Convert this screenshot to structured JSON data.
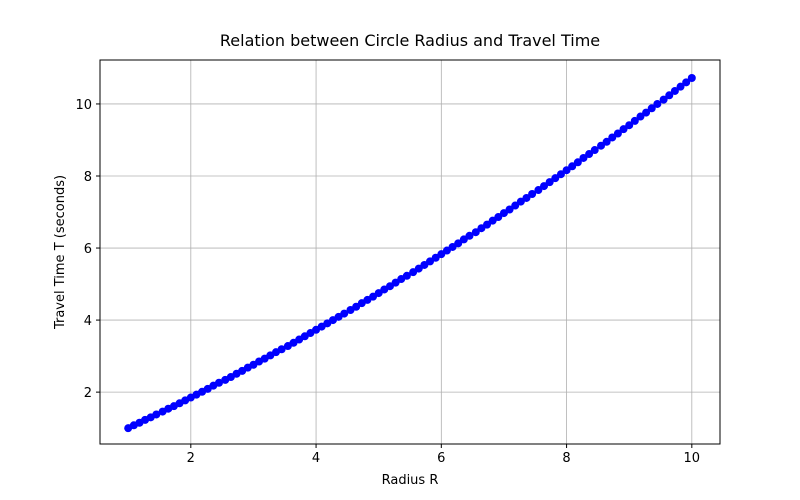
{
  "chart_data": {
    "type": "line",
    "title": "Relation between Circle Radius and Travel Time",
    "x_label": "Radius R",
    "y_label": "Travel Time T (seconds)",
    "x": [
      1.0,
      1.09,
      1.18,
      1.27,
      1.36,
      1.45,
      1.55,
      1.64,
      1.73,
      1.82,
      1.91,
      2.0,
      2.09,
      2.18,
      2.27,
      2.36,
      2.45,
      2.55,
      2.64,
      2.73,
      2.82,
      2.91,
      3.0,
      3.09,
      3.18,
      3.27,
      3.36,
      3.45,
      3.55,
      3.64,
      3.73,
      3.82,
      3.91,
      4.0,
      4.09,
      4.18,
      4.27,
      4.36,
      4.45,
      4.55,
      4.64,
      4.73,
      4.82,
      4.91,
      5.0,
      5.09,
      5.18,
      5.27,
      5.36,
      5.45,
      5.55,
      5.64,
      5.73,
      5.82,
      5.91,
      6.0,
      6.09,
      6.18,
      6.27,
      6.36,
      6.45,
      6.55,
      6.64,
      6.73,
      6.82,
      6.91,
      7.0,
      7.09,
      7.18,
      7.27,
      7.36,
      7.45,
      7.55,
      7.64,
      7.73,
      7.82,
      7.91,
      8.0,
      8.09,
      8.18,
      8.27,
      8.36,
      8.45,
      8.55,
      8.64,
      8.73,
      8.82,
      8.91,
      9.0,
      9.09,
      9.18,
      9.27,
      9.36,
      9.45,
      9.55,
      9.64,
      9.73,
      9.82,
      9.91,
      10.0
    ],
    "series": [
      {
        "color": "#0000ff",
        "values": [
          1.0,
          1.08,
          1.15,
          1.23,
          1.3,
          1.38,
          1.46,
          1.54,
          1.61,
          1.69,
          1.77,
          1.85,
          1.93,
          2.01,
          2.09,
          2.18,
          2.26,
          2.34,
          2.42,
          2.51,
          2.59,
          2.68,
          2.76,
          2.85,
          2.93,
          3.02,
          3.11,
          3.19,
          3.28,
          3.37,
          3.46,
          3.55,
          3.64,
          3.73,
          3.82,
          3.91,
          4.0,
          4.09,
          4.18,
          4.28,
          4.37,
          4.47,
          4.56,
          4.65,
          4.75,
          4.85,
          4.94,
          5.04,
          5.14,
          5.23,
          5.33,
          5.43,
          5.53,
          5.63,
          5.73,
          5.83,
          5.93,
          6.03,
          6.13,
          6.24,
          6.34,
          6.44,
          6.55,
          6.65,
          6.76,
          6.86,
          6.97,
          7.07,
          7.18,
          7.29,
          7.39,
          7.5,
          7.61,
          7.72,
          7.83,
          7.94,
          8.05,
          8.16,
          8.27,
          8.38,
          8.5,
          8.61,
          8.72,
          8.84,
          8.95,
          9.07,
          9.18,
          9.3,
          9.41,
          9.53,
          9.65,
          9.76,
          9.88,
          10.0,
          10.12,
          10.24,
          10.36,
          10.48,
          10.6,
          10.72
        ]
      }
    ],
    "xlim": [
      0.55,
      10.45
    ],
    "ylim": [
      0.56,
      11.22
    ],
    "xticks": [
      2,
      4,
      6,
      8,
      10
    ],
    "yticks": [
      2,
      4,
      6,
      8,
      10
    ],
    "grid": true,
    "marker": "circle"
  }
}
